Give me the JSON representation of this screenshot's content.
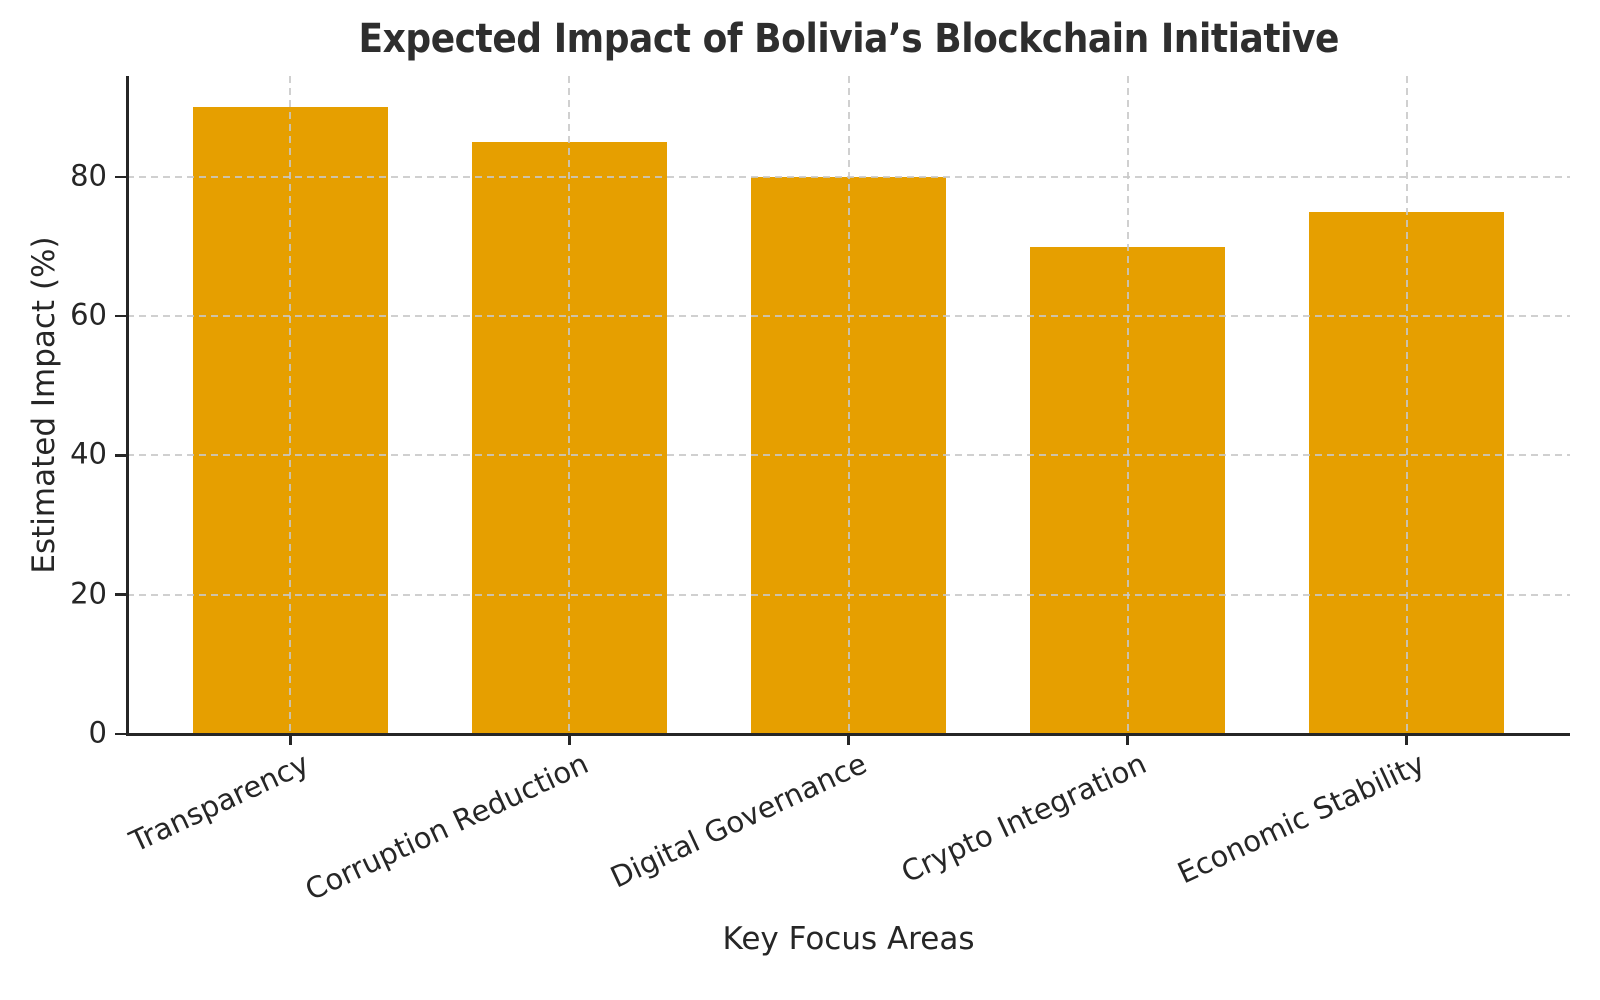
{
  "chart_data": {
    "type": "bar",
    "title": "Expected Impact of Bolivia’s Blockchain Initiative",
    "xlabel": "Key Focus Areas",
    "ylabel": "Estimated Impact (%)",
    "categories": [
      "Transparency",
      "Corruption Reduction",
      "Digital Governance",
      "Crypto Integration",
      "Economic Stability"
    ],
    "values": [
      90,
      85,
      80,
      70,
      75
    ],
    "yticks": [
      0,
      20,
      40,
      60,
      80
    ],
    "ylim": [
      0,
      94.5
    ],
    "bar_width_fraction": 0.7,
    "xtick_rotation_deg": 25,
    "grid": {
      "style": "dashed",
      "axes": "both",
      "drawn_above_bars": true
    },
    "legend": "none",
    "colors": {
      "bar": "#E69F00",
      "text": "#262626",
      "grid": "#c8c8c8",
      "spine": "#262626",
      "background": "#ffffff"
    }
  }
}
